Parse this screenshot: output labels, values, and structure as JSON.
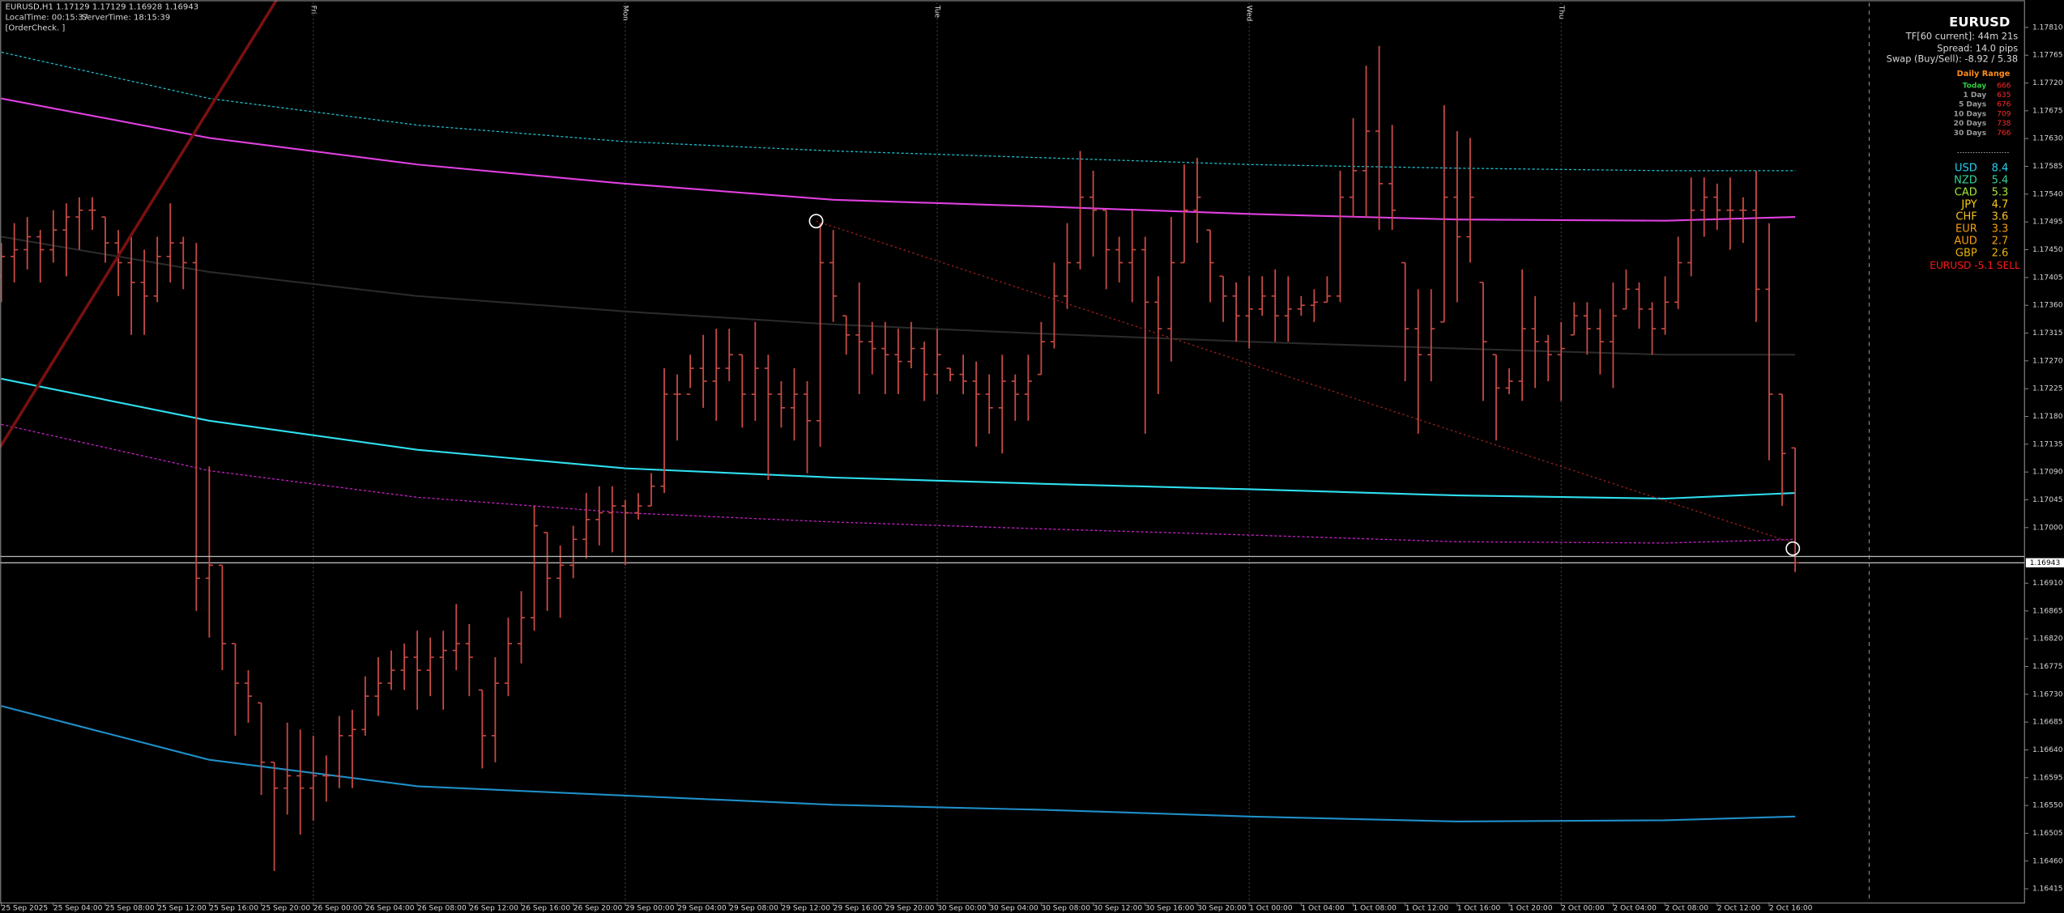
{
  "header": {
    "symbol_line": "EURUSD,H1  1.17129 1.17129 1.16928 1.16943",
    "local_time": "LocalTime: 00:15:37",
    "server_time": "ServerTime: 18:15:39",
    "order_check": "[OrderCheck. ]"
  },
  "panel": {
    "symbol": "EURUSD",
    "timer": "TF[60 current]: 44m 21s",
    "spread": "Spread: 14.0 pips",
    "swap": "Swap (Buy/Sell): -8.92 / 5.38",
    "range_title": "Daily Range",
    "ranges": [
      [
        "Today",
        "666"
      ],
      [
        "1 Day",
        "635"
      ],
      [
        "5 Days",
        "676"
      ],
      [
        "10 Days",
        "709"
      ],
      [
        "20 Days",
        "738"
      ],
      [
        "30 Days",
        "766"
      ]
    ],
    "strength": [
      [
        "USD",
        "8.4",
        "#22d3ee"
      ],
      [
        "NZD",
        "5.4",
        "#34d399"
      ],
      [
        "CAD",
        "5.3",
        "#a3e635"
      ],
      [
        "JPY",
        "4.7",
        "#facc15"
      ],
      [
        "CHF",
        "3.6",
        "#fbbf24"
      ],
      [
        "EUR",
        "3.3",
        "#f59e0b"
      ],
      [
        "AUD",
        "2.7",
        "#f59e0b"
      ],
      [
        "GBP",
        "2.6",
        "#eab308"
      ]
    ],
    "signal": "EURUSD -5.1 SELL"
  },
  "chart_data": {
    "type": "ohlc",
    "color": "#c94a44",
    "day_labels": [
      "Fri",
      "Mon",
      "Tue",
      "Wed",
      "Thu"
    ],
    "categories": [
      "25 Sep 2025",
      null,
      null,
      null,
      "25 Sep 04:00",
      null,
      null,
      null,
      "25 Sep 08:00",
      null,
      null,
      null,
      "25 Sep 12:00",
      null,
      null,
      null,
      "25 Sep 16:00",
      null,
      null,
      null,
      "25 Sep 20:00",
      null,
      null,
      null,
      "26 Sep 00:00",
      null,
      null,
      null,
      "26 Sep 04:00",
      null,
      null,
      null,
      "26 Sep 08:00",
      null,
      null,
      null,
      "26 Sep 12:00",
      null,
      null,
      null,
      "26 Sep 16:00",
      null,
      null,
      null,
      "26 Sep 20:00",
      null,
      null,
      null,
      "29 Sep 00:00",
      null,
      null,
      null,
      "29 Sep 04:00",
      null,
      null,
      null,
      "29 Sep 08:00",
      null,
      null,
      null,
      "29 Sep 12:00",
      null,
      null,
      null,
      "29 Sep 16:00",
      null,
      null,
      null,
      "29 Sep 20:00",
      null,
      null,
      null,
      "30 Sep 00:00",
      null,
      null,
      null,
      "30 Sep 04:00",
      null,
      null,
      null,
      "30 Sep 08:00",
      null,
      null,
      null,
      "30 Sep 12:00",
      null,
      null,
      null,
      "30 Sep 16:00",
      null,
      null,
      null,
      "30 Sep 20:00",
      null,
      null,
      null,
      "1 Oct 00:00",
      null,
      null,
      null,
      "1 Oct 04:00",
      null,
      null,
      null,
      "1 Oct 08:00",
      null,
      null,
      null,
      "1 Oct 12:00",
      null,
      null,
      null,
      "1 Oct 16:00",
      null,
      null,
      null,
      "1 Oct 20:00",
      null,
      null,
      null,
      "2 Oct 00:00",
      null,
      null,
      null,
      "2 Oct 04:00",
      null,
      null,
      null,
      "2 Oct 08:00",
      null,
      null,
      null,
      "2 Oct 12:00",
      null,
      null,
      null,
      "2 Oct 16:00",
      null,
      null
    ],
    "open": [
      1.17407,
      1.17439,
      1.1745,
      1.17471,
      1.1745,
      1.17482,
      1.17503,
      1.17514,
      1.17503,
      1.17461,
      1.17429,
      1.17397,
      1.17375,
      1.17439,
      1.17461,
      1.17429,
      1.16918,
      1.16939,
      1.16812,
      1.16748,
      1.16716,
      1.1662,
      1.16578,
      1.16598,
      1.16578,
      1.16598,
      1.16598,
      1.16663,
      1.16673,
      1.16727,
      1.16748,
      1.16769,
      1.1679,
      1.16769,
      1.1679,
      1.16801,
      1.16812,
      1.16737,
      1.16663,
      1.16748,
      1.16812,
      1.16854,
      1.16992,
      1.16918,
      1.16939,
      1.16981,
      1.17013,
      1.17024,
      1.17035,
      1.17024,
      1.17035,
      1.17067,
      1.17216,
      1.17216,
      1.17258,
      1.17237,
      1.17258,
      1.1728,
      1.17216,
      1.17258,
      1.17216,
      1.17194,
      1.17216,
      1.17173,
      1.17429,
      1.17343,
      1.17312,
      1.17301,
      1.1729,
      1.1728,
      1.17269,
      1.1729,
      1.17248,
      1.17258,
      1.17248,
      1.17237,
      1.17216,
      1.17194,
      1.17237,
      1.17216,
      1.17248,
      1.17301,
      1.17375,
      1.17429,
      1.17535,
      1.17514,
      1.1745,
      1.17429,
      1.1745,
      1.17365,
      1.17322,
      1.17429,
      1.17514,
      1.17482,
      1.17407,
      1.17375,
      1.17343,
      1.17354,
      1.17375,
      1.17343,
      1.17354,
      1.1736,
      1.17365,
      1.17375,
      1.17535,
      1.17578,
      1.17642,
      1.17557,
      1.17429,
      1.17322,
      1.1728,
      1.17333,
      1.17535,
      1.17471,
      1.17397,
      1.1728,
      1.17226,
      1.17237,
      1.17322,
      1.17301,
      1.1728,
      1.17312,
      1.17343,
      1.17322,
      1.17301,
      1.17354,
      1.17386,
      1.17354,
      1.17322,
      1.17365,
      1.17429,
      1.17514,
      1.17535,
      1.17514,
      1.17514,
      1.17514,
      1.17386,
      1.17216,
      1.17129
    ],
    "high": [
      1.17461,
      1.17493,
      1.17503,
      1.17482,
      1.17514,
      1.17525,
      1.17535,
      1.17535,
      1.17503,
      1.17482,
      1.17471,
      1.1745,
      1.17471,
      1.17525,
      1.17471,
      1.17461,
      1.17099,
      1.16939,
      1.16812,
      1.16769,
      1.16716,
      1.1662,
      1.16684,
      1.16673,
      1.16663,
      1.16631,
      1.16695,
      1.16705,
      1.16759,
      1.1679,
      1.16801,
      1.16812,
      1.16833,
      1.16822,
      1.16833,
      1.16876,
      1.16844,
      1.16737,
      1.1679,
      1.16854,
      1.16897,
      1.17035,
      1.16992,
      1.16971,
      1.17003,
      1.17056,
      1.17067,
      1.17067,
      1.17045,
      1.17056,
      1.17088,
      1.17258,
      1.17248,
      1.1728,
      1.17312,
      1.17322,
      1.17322,
      1.1728,
      1.17333,
      1.1728,
      1.17237,
      1.17258,
      1.17237,
      1.17493,
      1.17482,
      1.17343,
      1.17397,
      1.17333,
      1.17333,
      1.17322,
      1.17333,
      1.17301,
      1.17322,
      1.17258,
      1.1728,
      1.17269,
      1.17248,
      1.1728,
      1.17248,
      1.1728,
      1.17333,
      1.17429,
      1.17493,
      1.1761,
      1.17578,
      1.17514,
      1.17471,
      1.17514,
      1.17471,
      1.17407,
      1.17503,
      1.17588,
      1.17599,
      1.17482,
      1.17407,
      1.17397,
      1.17407,
      1.17407,
      1.17418,
      1.17407,
      1.17375,
      1.17386,
      1.17407,
      1.17578,
      1.17663,
      1.17748,
      1.1778,
      1.17652,
      1.17429,
      1.17386,
      1.17386,
      1.17684,
      1.17642,
      1.17631,
      1.17397,
      1.1728,
      1.17258,
      1.17418,
      1.17375,
      1.17312,
      1.17333,
      1.17365,
      1.17365,
      1.17354,
      1.17397,
      1.17418,
      1.17397,
      1.17365,
      1.17407,
      1.17471,
      1.17567,
      1.17567,
      1.17557,
      1.17567,
      1.17535,
      1.17578,
      1.17493,
      1.17216,
      1.17129
    ],
    "low": [
      1.17365,
      1.17397,
      1.17418,
      1.17397,
      1.17429,
      1.17407,
      1.1745,
      1.17482,
      1.17429,
      1.17375,
      1.17312,
      1.17312,
      1.17365,
      1.17397,
      1.17386,
      1.16865,
      1.16822,
      1.16769,
      1.16663,
      1.16684,
      1.16567,
      1.16444,
      1.16535,
      1.16503,
      1.16525,
      1.16556,
      1.16578,
      1.16578,
      1.16663,
      1.16695,
      1.16737,
      1.16737,
      1.16705,
      1.16727,
      1.16705,
      1.16769,
      1.16727,
      1.1661,
      1.1662,
      1.16727,
      1.1678,
      1.16833,
      1.16865,
      1.16854,
      1.16918,
      1.1695,
      1.16971,
      1.1696,
      1.16939,
      1.17013,
      1.17035,
      1.17056,
      1.17141,
      1.17226,
      1.17194,
      1.17173,
      1.17237,
      1.17162,
      1.17173,
      1.17077,
      1.17162,
      1.17141,
      1.17088,
      1.17131,
      1.17333,
      1.1728,
      1.17216,
      1.17248,
      1.17216,
      1.17216,
      1.17258,
      1.17205,
      1.17216,
      1.17237,
      1.17216,
      1.17131,
      1.17152,
      1.1712,
      1.17173,
      1.17173,
      1.17248,
      1.1729,
      1.17354,
      1.17418,
      1.17439,
      1.17386,
      1.17397,
      1.17365,
      1.17152,
      1.17216,
      1.17269,
      1.17429,
      1.17461,
      1.17365,
      1.17333,
      1.17301,
      1.1729,
      1.17343,
      1.17301,
      1.17301,
      1.17343,
      1.17333,
      1.17365,
      1.17365,
      1.17503,
      1.17503,
      1.17482,
      1.17482,
      1.17237,
      1.17152,
      1.17237,
      1.17333,
      1.17365,
      1.17429,
      1.17205,
      1.17141,
      1.17216,
      1.17205,
      1.17226,
      1.17237,
      1.17205,
      1.17312,
      1.1728,
      1.17248,
      1.17226,
      1.17354,
      1.17322,
      1.1728,
      1.17312,
      1.17354,
      1.17407,
      1.17471,
      1.17482,
      1.1745,
      1.17461,
      1.17333,
      1.17109,
      1.17035,
      1.16928
    ],
    "close": [
      1.17439,
      1.1745,
      1.17471,
      1.1745,
      1.17482,
      1.17503,
      1.17514,
      1.17514,
      1.17461,
      1.17429,
      1.17397,
      1.17375,
      1.17439,
      1.17461,
      1.17429,
      1.16918,
      1.16939,
      1.16812,
      1.16748,
      1.16727,
      1.1662,
      1.16578,
      1.16598,
      1.16578,
      1.16598,
      1.16598,
      1.16663,
      1.16673,
      1.16727,
      1.16748,
      1.16769,
      1.1679,
      1.16769,
      1.1679,
      1.16801,
      1.16812,
      1.1679,
      1.16663,
      1.16748,
      1.16812,
      1.16854,
      1.17003,
      1.16918,
      1.16939,
      1.16981,
      1.17013,
      1.17024,
      1.17035,
      1.17024,
      1.17035,
      1.17067,
      1.17216,
      1.17216,
      1.17258,
      1.17237,
      1.17258,
      1.1728,
      1.17216,
      1.17258,
      1.17216,
      1.17194,
      1.17216,
      1.17173,
      1.17429,
      1.17375,
      1.17312,
      1.17301,
      1.1729,
      1.1728,
      1.17269,
      1.1729,
      1.17248,
      1.1728,
      1.17248,
      1.17237,
      1.17216,
      1.17194,
      1.17237,
      1.17216,
      1.17237,
      1.17301,
      1.17375,
      1.17429,
      1.17535,
      1.17514,
      1.1745,
      1.17429,
      1.1745,
      1.17365,
      1.17322,
      1.17429,
      1.17514,
      1.17535,
      1.17429,
      1.17375,
      1.17343,
      1.17354,
      1.17375,
      1.17343,
      1.17354,
      1.1736,
      1.17365,
      1.17375,
      1.17535,
      1.17578,
      1.17642,
      1.17557,
      1.17514,
      1.17322,
      1.1728,
      1.17322,
      1.17535,
      1.17471,
      1.17535,
      1.17301,
      1.17226,
      1.17237,
      1.17322,
      1.17301,
      1.1728,
      1.1729,
      1.17343,
      1.17322,
      1.17301,
      1.17343,
      1.17386,
      1.17354,
      1.17322,
      1.17365,
      1.17429,
      1.17514,
      1.17535,
      1.17514,
      1.17514,
      1.17514,
      1.17386,
      1.17216,
      1.1712,
      1.16943
    ],
    "overlays": [
      {
        "color": "#e040e0",
        "style": "solid",
        "values": [
          1.17695,
          1.17631,
          1.17588,
          1.17557,
          1.17531,
          1.1752,
          1.17508,
          1.17499,
          1.17497,
          1.17503
        ]
      },
      {
        "color": "#1fb8c4",
        "style": "dotted",
        "values": [
          1.1777,
          1.17695,
          1.17652,
          1.17625,
          1.1761,
          1.17599,
          1.17588,
          1.17582,
          1.17578,
          1.17578
        ]
      },
      {
        "color": "#2fe0f0",
        "style": "solid",
        "values": [
          1.17241,
          1.17173,
          1.17126,
          1.17096,
          1.17081,
          1.17071,
          1.17062,
          1.17052,
          1.17047,
          1.17056
        ]
      },
      {
        "color": "#c020c0",
        "style": "dotted",
        "values": [
          1.17167,
          1.17092,
          1.17049,
          1.17024,
          1.17009,
          1.16998,
          1.16988,
          1.16977,
          1.16975,
          1.16981
        ]
      },
      {
        "color": "#1f8fc8",
        "style": "solid",
        "values": [
          1.16711,
          1.16624,
          1.16581,
          1.16566,
          1.16551,
          1.16543,
          1.16532,
          1.16524,
          1.16526,
          1.16532
        ]
      },
      {
        "color": "#2a2a2a",
        "style": "solid",
        "values": [
          1.17471,
          1.17414,
          1.17375,
          1.1735,
          1.17329,
          1.17314,
          1.17301,
          1.1729,
          1.1728,
          1.1728
        ]
      }
    ],
    "ylim": [
      1.16393,
      1.1785
    ],
    "yticks": [
      1.16415,
      {
        "value": 1.1646,
        "label": "1.16460"
      },
      1.16505,
      {
        "value": 1.1655,
        "label": "1.16550"
      },
      1.16595,
      {
        "value": 1.1664,
        "label": "1.16640"
      },
      1.16685,
      {
        "value": 1.1673,
        "label": "1.16730"
      },
      1.16775,
      {
        "value": 1.1682,
        "label": "1.16820"
      },
      1.16865,
      {
        "value": 1.1691,
        "label": "1.16910"
      },
      {
        "value": 1.17,
        "label": "1.17000"
      },
      1.17045,
      {
        "value": 1.1709,
        "label": "1.17090"
      },
      1.17135,
      {
        "value": 1.1718,
        "label": "1.17180"
      },
      1.17225,
      {
        "value": 1.1727,
        "label": "1.17270"
      },
      1.17315,
      {
        "value": 1.1736,
        "label": "1.17360"
      },
      1.17405,
      {
        "value": 1.1745,
        "label": "1.17450"
      },
      1.17495,
      {
        "value": 1.1754,
        "label": "1.17540"
      },
      1.17585,
      {
        "value": 1.1763,
        "label": "1.17630"
      },
      1.17675,
      {
        "value": 1.1772,
        "label": "1.17720"
      },
      1.17765,
      {
        "value": 1.1781,
        "label": "1.17810"
      }
    ]
  }
}
